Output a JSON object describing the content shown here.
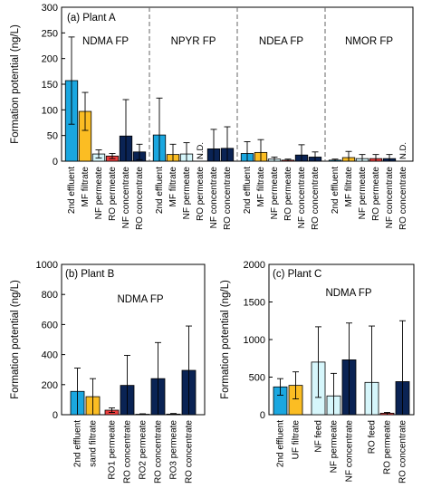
{
  "colors": {
    "2nd effluent": "#1aa7e0",
    "MF filtrate": "#fbbd23",
    "NF permeate": "#d6f6fb",
    "RO permeate": "#ee3e3e",
    "NF concentrate": "#0a2354",
    "RO concentrate": "#0a2354",
    "sand filtrate": "#fbbd23",
    "RO1 permeate": "#ee3e3e",
    "RO2 permeate": "#ee3e3e",
    "RO3 permeate": "#ee3e3e",
    "UF filtrate": "#fbbd23",
    "NF feed": "#d6f6fb",
    "RO feed": "#d6f6fb"
  },
  "chart_data": [
    {
      "type": "bar",
      "panel_label": "(a) Plant A",
      "ylabel": "Formation potential (ng/L)",
      "ylim": [
        0,
        300
      ],
      "yticks": [
        0,
        50,
        100,
        150,
        200,
        250,
        300
      ],
      "groups": [
        {
          "title": "NDMA FP",
          "bars": [
            {
              "category": "2nd effluent",
              "value": 157,
              "err_lo": 85,
              "err_hi": 85
            },
            {
              "category": "MF filtrate",
              "value": 97,
              "err_lo": 37,
              "err_hi": 37
            },
            {
              "category": "NF permeate",
              "value": 14,
              "err_lo": 8,
              "err_hi": 8
            },
            {
              "category": "RO permeate",
              "value": 10,
              "err_lo": 5,
              "err_hi": 5
            },
            {
              "category": "NF concentrate",
              "value": 49,
              "err_lo": 49,
              "err_hi": 71
            },
            {
              "category": "RO concentrate",
              "value": 18,
              "err_lo": 15,
              "err_hi": 15
            }
          ]
        },
        {
          "title": "NPYR FP",
          "bars": [
            {
              "category": "2nd effluent",
              "value": 51,
              "err_lo": 51,
              "err_hi": 72
            },
            {
              "category": "MF filtrate",
              "value": 13,
              "err_lo": 13,
              "err_hi": 20
            },
            {
              "category": "NF permeate",
              "value": 14,
              "err_lo": 14,
              "err_hi": 22
            },
            {
              "category": "RO permeate",
              "value": null,
              "label": "N.D."
            },
            {
              "category": "NF concentrate",
              "value": 24,
              "err_lo": 24,
              "err_hi": 38
            },
            {
              "category": "RO concentrate",
              "value": 25,
              "err_lo": 25,
              "err_hi": 42
            }
          ]
        },
        {
          "title": "NDEA FP",
          "bars": [
            {
              "category": "2nd effluent",
              "value": 15,
              "err_lo": 15,
              "err_hi": 23
            },
            {
              "category": "MF filtrate",
              "value": 17,
              "err_lo": 17,
              "err_hi": 25
            },
            {
              "category": "NF permeate",
              "value": 4,
              "err_lo": 4,
              "err_hi": 4
            },
            {
              "category": "RO permeate",
              "value": 2,
              "err_lo": 2,
              "err_hi": 2
            },
            {
              "category": "NF concentrate",
              "value": 12,
              "err_lo": 12,
              "err_hi": 20
            },
            {
              "category": "RO concentrate",
              "value": 8,
              "err_lo": 8,
              "err_hi": 10
            }
          ]
        },
        {
          "title": "NMOR FP",
          "bars": [
            {
              "category": "2nd effluent",
              "value": 2,
              "err_lo": 2,
              "err_hi": 2
            },
            {
              "category": "MF filtrate",
              "value": 7,
              "err_lo": 7,
              "err_hi": 12
            },
            {
              "category": "NF permeate",
              "value": 5,
              "err_lo": 5,
              "err_hi": 8
            },
            {
              "category": "RO permeate",
              "value": 5,
              "err_lo": 5,
              "err_hi": 8
            },
            {
              "category": "NF concentrate",
              "value": 5,
              "err_lo": 5,
              "err_hi": 8
            },
            {
              "category": "RO concentrate",
              "value": null,
              "label": "N.D."
            }
          ]
        }
      ]
    },
    {
      "type": "bar",
      "panel_label": "(b) Plant B",
      "ylabel": "Formation potential (ng/L)",
      "ylim": [
        0,
        1000
      ],
      "yticks": [
        0,
        200,
        400,
        600,
        800,
        1000
      ],
      "groups": [
        {
          "title": "NDMA FP",
          "bars": [
            {
              "category": "2nd effluent",
              "value": 155,
              "err_lo": 155,
              "err_hi": 155
            },
            {
              "category": "sand filtrate",
              "value": 120,
              "err_lo": 120,
              "err_hi": 120
            },
            {
              "category": "RO1 permeate",
              "value": 30,
              "err_lo": 15,
              "err_hi": 15
            },
            {
              "category": "RO concentrate",
              "value": 195,
              "err_lo": 195,
              "err_hi": 200
            },
            {
              "category": "RO2 permeate",
              "value": 3,
              "err_lo": 3,
              "err_hi": 3
            },
            {
              "category": "RO concentrate",
              "value": 240,
              "err_lo": 240,
              "err_hi": 240
            },
            {
              "category": "RO3 permeate",
              "value": 4,
              "err_lo": 4,
              "err_hi": 4
            },
            {
              "category": "RO concentrate",
              "value": 295,
              "err_lo": 295,
              "err_hi": 295
            }
          ]
        }
      ]
    },
    {
      "type": "bar",
      "panel_label": "(c) Plant C",
      "ylabel": "Formation potential (ng/L)",
      "ylim": [
        0,
        2000
      ],
      "yticks": [
        0,
        500,
        1000,
        1500,
        2000
      ],
      "groups": [
        {
          "title": "NDMA FP",
          "bars": [
            {
              "category": "2nd effluent",
              "value": 370,
              "err_lo": 110,
              "err_hi": 110
            },
            {
              "category": "UF filtrate",
              "value": 390,
              "err_lo": 180,
              "err_hi": 180
            },
            {
              "category": "NF feed",
              "value": 700,
              "err_lo": 470,
              "err_hi": 470
            },
            {
              "category": "NF permeate",
              "value": 250,
              "err_lo": 250,
              "err_hi": 300
            },
            {
              "category": "NF concentrate",
              "value": 730,
              "err_lo": 730,
              "err_hi": 490
            },
            {
              "category": "RO feed",
              "value": 430,
              "err_lo": 430,
              "err_hi": 750
            },
            {
              "category": "RO permeate",
              "value": 20,
              "err_lo": 20,
              "err_hi": 10
            },
            {
              "category": "RO concentrate",
              "value": 440,
              "err_lo": 440,
              "err_hi": 810
            }
          ]
        }
      ]
    }
  ]
}
